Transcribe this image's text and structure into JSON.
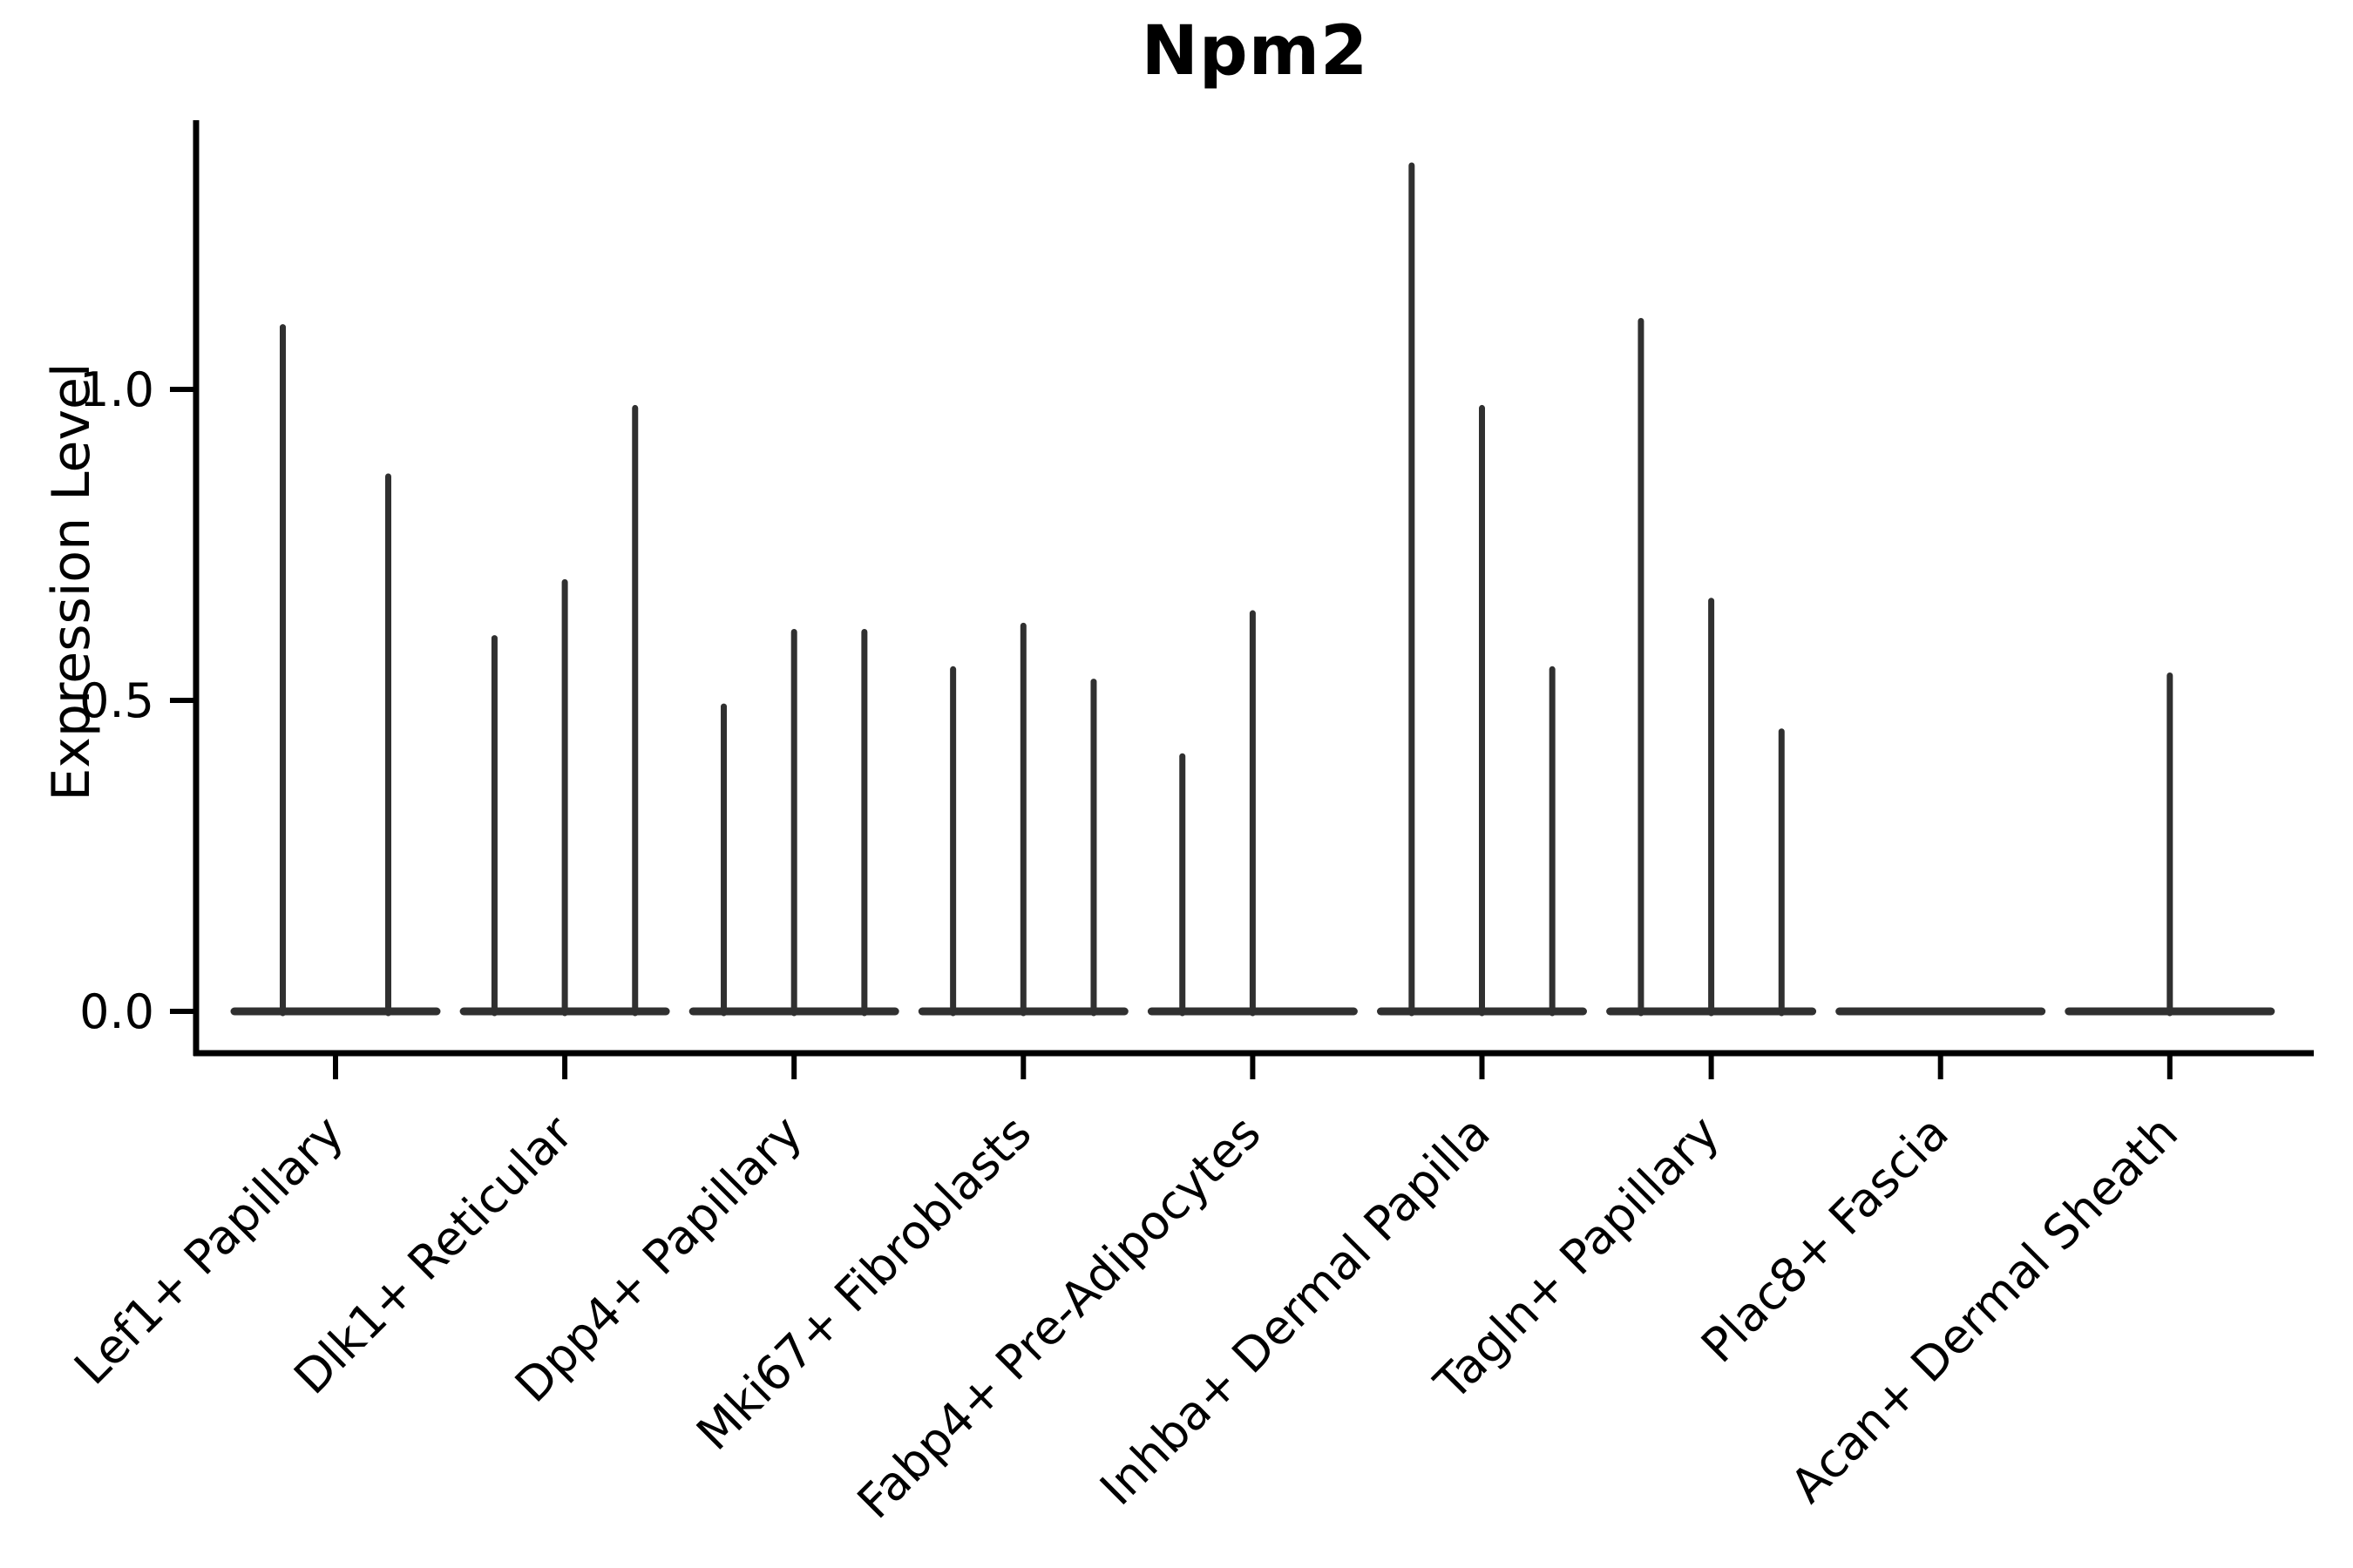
{
  "title": "Npm2",
  "chart_data": {
    "type": "violin",
    "title": "Npm2",
    "xlabel": "",
    "ylabel": "Expression Level",
    "ylim": [
      0,
      1.43
    ],
    "yticks": [
      0.0,
      0.5,
      1.0
    ],
    "ytick_labels": [
      "0.0",
      "0.5",
      "1.0"
    ],
    "grid": false,
    "legend": "none",
    "x_tick_label_rotation_deg": 45,
    "categories": [
      "Lef1+ Papillary",
      "Dlk1+ Reticular",
      "Dpp4+ Papillary",
      "Mki67+ Fibroblasts",
      "Fabp4+ Pre-Adipocytes",
      "Inhba+ Dermal Papilla",
      "Tagln+ Papillary",
      "Plac8+ Fascia",
      "Acan+ Dermal Sheath"
    ],
    "series": [
      {
        "category": "Lef1+ Papillary",
        "violin_max_values": [
          1.1,
          0.86
        ]
      },
      {
        "category": "Dlk1+ Reticular",
        "violin_max_values": [
          0.6,
          0.69,
          0.97
        ]
      },
      {
        "category": "Dpp4+ Papillary",
        "violin_max_values": [
          0.49,
          0.61,
          0.61
        ]
      },
      {
        "category": "Mki67+ Fibroblasts",
        "violin_max_values": [
          0.55,
          0.62,
          0.53
        ]
      },
      {
        "category": "Fabp4+ Pre-Adipocytes",
        "violin_max_values": [
          0.41,
          0.64,
          0.0
        ]
      },
      {
        "category": "Inhba+ Dermal Papilla",
        "violin_max_values": [
          1.36,
          0.97,
          0.55
        ]
      },
      {
        "category": "Tagln+ Papillary",
        "violin_max_values": [
          1.11,
          0.66,
          0.45
        ]
      },
      {
        "category": "Plac8+ Fascia",
        "violin_max_values": [
          0.0,
          0.0,
          0.0
        ]
      },
      {
        "category": "Acan+ Dermal Sheath",
        "violin_max_values": [
          0.0,
          0.54,
          0.0
        ]
      }
    ],
    "description": "Single-gene violin plot; density mass concentrated at 0 produces flat wide bases with thin spikes reaching each violin's maximum expression value.",
    "colors": {
      "violin": "#303030",
      "axis": "#000000",
      "text": "#000000",
      "background": "#ffffff"
    }
  }
}
